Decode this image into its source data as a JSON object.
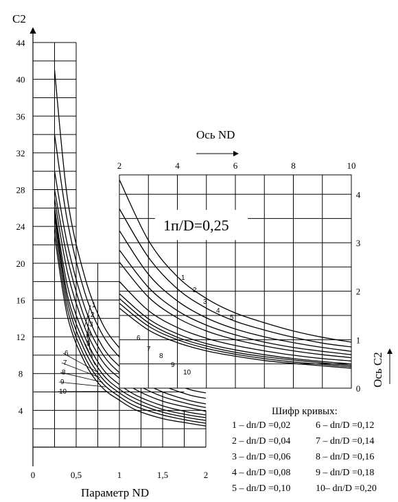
{
  "chart_data": [
    {
      "type": "line",
      "xlabel": "Параметр ND",
      "ylabel": "C2",
      "xlim": [
        0,
        2
      ],
      "ylim": [
        0,
        44
      ],
      "x_ticks": [
        "0",
        "0,5",
        "1",
        "1,5",
        "2"
      ],
      "y_ticks": [
        "4",
        "8",
        "12",
        "16",
        "20",
        "24",
        "28",
        "32",
        "36",
        "40",
        "44"
      ],
      "series": [
        {
          "name": "1",
          "x": [
            0.25,
            0.4,
            0.6,
            0.8,
            1.0,
            1.2,
            1.5,
            1.8,
            2.0
          ],
          "y": [
            41.0,
            27.0,
            18.5,
            13.5,
            10.8,
            9.0,
            7.4,
            6.3,
            5.9
          ]
        },
        {
          "name": "2",
          "x": [
            0.25,
            0.4,
            0.6,
            0.8,
            1.0,
            1.2,
            1.5,
            1.8,
            2.0
          ],
          "y": [
            34.0,
            24.5,
            16.8,
            12.3,
            9.8,
            8.2,
            6.7,
            5.7,
            5.3
          ]
        },
        {
          "name": "3",
          "x": [
            0.25,
            0.4,
            0.6,
            0.8,
            1.0,
            1.2,
            1.5,
            1.8,
            2.0
          ],
          "y": [
            30.0,
            22.0,
            15.2,
            11.0,
            8.8,
            7.4,
            6.0,
            5.1,
            4.7
          ]
        },
        {
          "name": "4",
          "x": [
            0.25,
            0.4,
            0.6,
            0.8,
            1.0,
            1.2,
            1.5,
            1.8,
            2.0
          ],
          "y": [
            28.0,
            20.5,
            14.0,
            10.2,
            8.1,
            6.8,
            5.5,
            4.7,
            4.3
          ]
        },
        {
          "name": "5",
          "x": [
            0.25,
            0.4,
            0.6,
            0.8,
            1.0,
            1.2,
            1.5,
            1.8,
            2.0
          ],
          "y": [
            27.0,
            19.0,
            13.0,
            9.4,
            7.5,
            6.2,
            5.0,
            4.3,
            3.9
          ]
        },
        {
          "name": "6",
          "x": [
            0.25,
            0.4,
            0.6,
            0.8,
            1.0,
            1.2,
            1.5,
            1.8,
            2.0
          ],
          "y": [
            26.0,
            17.5,
            12.0,
            8.6,
            6.8,
            5.6,
            4.5,
            3.8,
            3.5
          ]
        },
        {
          "name": "7",
          "x": [
            0.25,
            0.4,
            0.6,
            0.8,
            1.0,
            1.2,
            1.5,
            1.8,
            2.0
          ],
          "y": [
            25.5,
            16.5,
            11.2,
            8.0,
            6.3,
            5.2,
            4.1,
            3.5,
            3.2
          ]
        },
        {
          "name": "8",
          "x": [
            0.25,
            0.4,
            0.6,
            0.8,
            1.0,
            1.2,
            1.5,
            1.8,
            2.0
          ],
          "y": [
            25.0,
            15.8,
            10.5,
            7.5,
            5.9,
            4.8,
            3.8,
            3.2,
            2.9
          ]
        },
        {
          "name": "9",
          "x": [
            0.25,
            0.4,
            0.6,
            0.8,
            1.0,
            1.2,
            1.5,
            1.8,
            2.0
          ],
          "y": [
            24.0,
            15.0,
            9.8,
            7.0,
            5.5,
            4.4,
            3.5,
            2.9,
            2.6
          ]
        },
        {
          "name": "10",
          "x": [
            0.25,
            0.4,
            0.6,
            0.8,
            1.0,
            1.2,
            1.5,
            1.8,
            2.0
          ],
          "y": [
            23.0,
            14.2,
            9.2,
            6.5,
            5.1,
            4.0,
            3.1,
            2.6,
            2.3
          ]
        }
      ]
    },
    {
      "type": "line",
      "xlabel": "Ось ND",
      "ylabel": "Ось C2",
      "xlim": [
        2,
        10
      ],
      "ylim": [
        0,
        4.4
      ],
      "x_ticks": [
        "2",
        "4",
        "6",
        "8",
        "10"
      ],
      "y_ticks": [
        "0",
        "1",
        "2",
        "3",
        "4"
      ],
      "annotation": "1п/D=0,25",
      "series": [
        {
          "name": "1",
          "x": [
            2,
            3,
            4,
            5,
            6,
            7,
            8,
            9,
            10
          ],
          "y": [
            4.3,
            3.05,
            2.3,
            1.85,
            1.55,
            1.35,
            1.18,
            1.05,
            0.95
          ]
        },
        {
          "name": "2",
          "x": [
            2,
            3,
            4,
            5,
            6,
            7,
            8,
            9,
            10
          ],
          "y": [
            3.7,
            2.7,
            2.05,
            1.65,
            1.38,
            1.2,
            1.05,
            0.93,
            0.85
          ]
        },
        {
          "name": "3",
          "x": [
            2,
            3,
            4,
            5,
            6,
            7,
            8,
            9,
            10
          ],
          "y": [
            3.25,
            2.35,
            1.8,
            1.45,
            1.22,
            1.06,
            0.94,
            0.84,
            0.76
          ]
        },
        {
          "name": "4",
          "x": [
            2,
            3,
            4,
            5,
            6,
            7,
            8,
            9,
            10
          ],
          "y": [
            2.85,
            2.08,
            1.6,
            1.3,
            1.1,
            0.95,
            0.84,
            0.76,
            0.69
          ]
        },
        {
          "name": "5",
          "x": [
            2,
            3,
            4,
            5,
            6,
            7,
            8,
            9,
            10
          ],
          "y": [
            2.6,
            1.88,
            1.45,
            1.18,
            1.0,
            0.87,
            0.77,
            0.69,
            0.63
          ]
        },
        {
          "name": "6",
          "x": [
            2,
            3,
            4,
            5,
            6,
            7,
            8,
            9,
            10
          ],
          "y": [
            2.2,
            1.6,
            1.25,
            1.03,
            0.88,
            0.77,
            0.68,
            0.61,
            0.56
          ]
        },
        {
          "name": "7",
          "x": [
            2,
            3,
            4,
            5,
            6,
            7,
            8,
            9,
            10
          ],
          "y": [
            1.95,
            1.43,
            1.12,
            0.92,
            0.79,
            0.69,
            0.61,
            0.55,
            0.5
          ]
        },
        {
          "name": "8",
          "x": [
            2,
            3,
            4,
            5,
            6,
            7,
            8,
            9,
            10
          ],
          "y": [
            1.85,
            1.35,
            1.05,
            0.87,
            0.74,
            0.65,
            0.58,
            0.52,
            0.47
          ]
        },
        {
          "name": "9",
          "x": [
            2,
            3,
            4,
            5,
            6,
            7,
            8,
            9,
            10
          ],
          "y": [
            1.75,
            1.28,
            1.0,
            0.82,
            0.7,
            0.61,
            0.54,
            0.49,
            0.44
          ]
        },
        {
          "name": "10",
          "x": [
            2,
            3,
            4,
            5,
            6,
            7,
            8,
            9,
            10
          ],
          "y": [
            1.65,
            1.2,
            0.94,
            0.77,
            0.66,
            0.57,
            0.51,
            0.46,
            0.41
          ]
        }
      ]
    }
  ],
  "legend": {
    "title": "Шифр кривых:",
    "items": [
      "1 – dп/D =0,02",
      "2 – dп/D =0,04",
      "3 – dп/D =0,06",
      "4 – dп/D =0,08",
      "5 – dп/D =0,10",
      "6 – dп/D =0,12",
      "7 – dп/D =0,14",
      "8 – dп/D =0,16",
      "9 – dп/D =0,18",
      "10– dп/D =0,20"
    ]
  }
}
